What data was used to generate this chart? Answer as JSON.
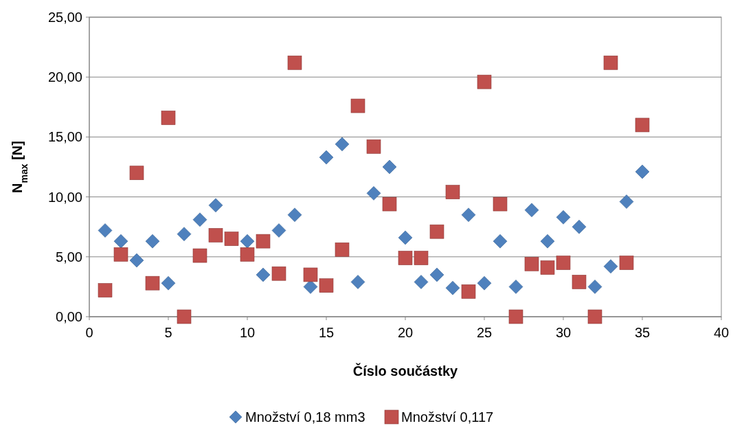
{
  "chart_data": {
    "type": "scatter",
    "xlabel": "Číslo součástky",
    "ylabel": "N$_{max}$ [N]",
    "xlim": [
      0,
      40
    ],
    "xticks": [
      0,
      5,
      10,
      15,
      20,
      25,
      30,
      35,
      40
    ],
    "ylim": [
      0,
      25
    ],
    "yticks": [
      {
        "value": 0,
        "label": "0,00"
      },
      {
        "value": 5,
        "label": "5,00"
      },
      {
        "value": 10,
        "label": "10,00"
      },
      {
        "value": 15,
        "label": "15,00"
      },
      {
        "value": 20,
        "label": "20,00"
      },
      {
        "value": 25,
        "label": "25,00"
      }
    ],
    "grid": "y",
    "legend": "bottom",
    "x": [
      1,
      2,
      3,
      4,
      5,
      6,
      7,
      8,
      9,
      10,
      11,
      12,
      13,
      14,
      15,
      16,
      17,
      18,
      19,
      20,
      21,
      22,
      23,
      24,
      25,
      26,
      27,
      28,
      29,
      30,
      31,
      32,
      33,
      34,
      35
    ],
    "series": [
      {
        "name": "Množství 0,18 mm3",
        "color": "#4f81bd",
        "marker": "diamond",
        "values": [
          7.2,
          6.3,
          4.7,
          6.3,
          2.8,
          6.9,
          8.1,
          9.3,
          null,
          6.3,
          3.5,
          7.2,
          8.5,
          2.5,
          13.3,
          14.4,
          2.9,
          10.3,
          12.5,
          6.6,
          2.9,
          3.5,
          2.4,
          8.5,
          2.8,
          6.3,
          2.5,
          8.9,
          6.3,
          8.3,
          7.5,
          2.5,
          4.2,
          9.6,
          12.1
        ]
      },
      {
        "name": "Množství 0,117",
        "color": "#c0504d",
        "marker": "square",
        "values": [
          2.2,
          5.2,
          12.0,
          2.8,
          16.6,
          0,
          5.1,
          6.8,
          6.5,
          5.2,
          6.3,
          3.6,
          21.2,
          3.5,
          2.6,
          5.6,
          17.6,
          14.2,
          9.4,
          4.9,
          4.9,
          7.1,
          10.4,
          2.1,
          19.6,
          9.4,
          0,
          4.4,
          4.1,
          4.5,
          2.9,
          0,
          21.2,
          4.5,
          16.0
        ]
      }
    ]
  }
}
